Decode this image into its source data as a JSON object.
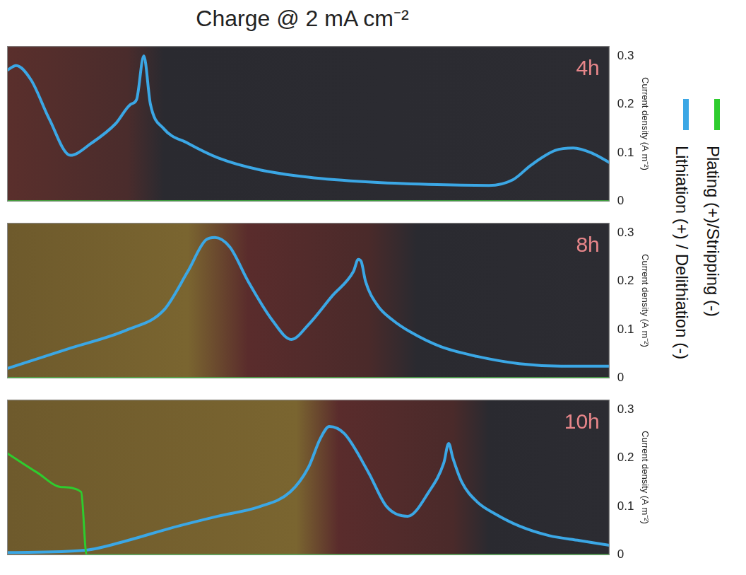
{
  "title": "Charge @ 2 mA cm⁻²",
  "chart_data": [
    {
      "type": "line",
      "title": "4h",
      "y_label": "Current density (A m⁻²)",
      "xlim": [
        0,
        100
      ],
      "ylim": [
        0,
        0.32
      ],
      "yticks": [
        0,
        0.1,
        0.2,
        0.3
      ],
      "grid": false,
      "tick_labels": "y",
      "legend": "right",
      "series": [
        {
          "name": "Lithiation (+) / Delithiation (-)",
          "color": "#3ba7e5",
          "x": [
            0,
            1.5,
            4,
            7,
            10.5,
            14,
            18,
            20.5,
            21.5,
            22.7,
            23.8,
            26,
            30,
            35,
            42,
            50,
            60,
            70,
            80,
            84,
            87,
            91,
            94,
            97,
            100
          ],
          "values": [
            0.27,
            0.28,
            0.25,
            0.17,
            0.095,
            0.12,
            0.16,
            0.2,
            0.21,
            0.3,
            0.2,
            0.15,
            0.12,
            0.09,
            0.065,
            0.05,
            0.04,
            0.035,
            0.033,
            0.045,
            0.075,
            0.105,
            0.11,
            0.1,
            0.08
          ]
        },
        {
          "name": "Plating (+)/Stripping (-)",
          "color": "#2ecc2e",
          "x": [
            0,
            100
          ],
          "values": [
            0,
            0
          ]
        }
      ]
    },
    {
      "type": "line",
      "title": "8h",
      "y_label": "Current density (A m⁻²)",
      "xlim": [
        0,
        100
      ],
      "ylim": [
        0,
        0.32
      ],
      "yticks": [
        0,
        0.1,
        0.2,
        0.3
      ],
      "grid": false,
      "tick_labels": "y",
      "legend": "right",
      "series": [
        {
          "name": "Lithiation (+) / Delithiation (-)",
          "color": "#3ba7e5",
          "x": [
            0,
            10,
            20,
            26,
            30,
            33,
            34.5,
            37,
            40,
            44,
            47.2,
            50,
            54,
            57.5,
            58.3,
            58.8,
            59.5,
            61.5,
            64,
            67,
            72,
            78,
            85,
            92,
            100
          ],
          "values": [
            0.02,
            0.06,
            0.1,
            0.14,
            0.22,
            0.285,
            0.29,
            0.27,
            0.2,
            0.12,
            0.08,
            0.11,
            0.17,
            0.22,
            0.245,
            0.24,
            0.2,
            0.15,
            0.12,
            0.095,
            0.065,
            0.045,
            0.03,
            0.025,
            0.025
          ]
        },
        {
          "name": "Plating (+)/Stripping (-)",
          "color": "#2ecc2e",
          "x": [
            0,
            100
          ],
          "values": [
            0,
            0
          ]
        }
      ]
    },
    {
      "type": "line",
      "title": "10h",
      "y_label": "Current density (A m⁻²)",
      "xlim": [
        0,
        100
      ],
      "ylim": [
        0,
        0.32
      ],
      "yticks": [
        0,
        0.1,
        0.2,
        0.3
      ],
      "grid": false,
      "tick_labels": "y",
      "legend": "right",
      "series": [
        {
          "name": "Lithiation (+) / Delithiation (-)",
          "color": "#3ba7e5",
          "x": [
            0,
            13,
            20,
            27,
            35,
            42,
            47,
            50,
            52,
            53.5,
            56,
            60,
            63,
            66.5,
            70,
            72.5,
            73.3,
            74,
            75.5,
            78,
            81,
            85,
            90,
            95,
            100
          ],
          "values": [
            0.005,
            0.01,
            0.03,
            0.055,
            0.08,
            0.1,
            0.13,
            0.18,
            0.24,
            0.265,
            0.25,
            0.17,
            0.1,
            0.08,
            0.13,
            0.19,
            0.23,
            0.2,
            0.15,
            0.11,
            0.085,
            0.06,
            0.04,
            0.03,
            0.02
          ]
        },
        {
          "name": "Plating (+)/Stripping (-)",
          "color": "#2ecc2e",
          "x": [
            0,
            5,
            9,
            12.3,
            13.2,
            100
          ],
          "values": [
            0.21,
            0.17,
            0.14,
            0.13,
            0,
            0
          ]
        }
      ]
    }
  ]
}
